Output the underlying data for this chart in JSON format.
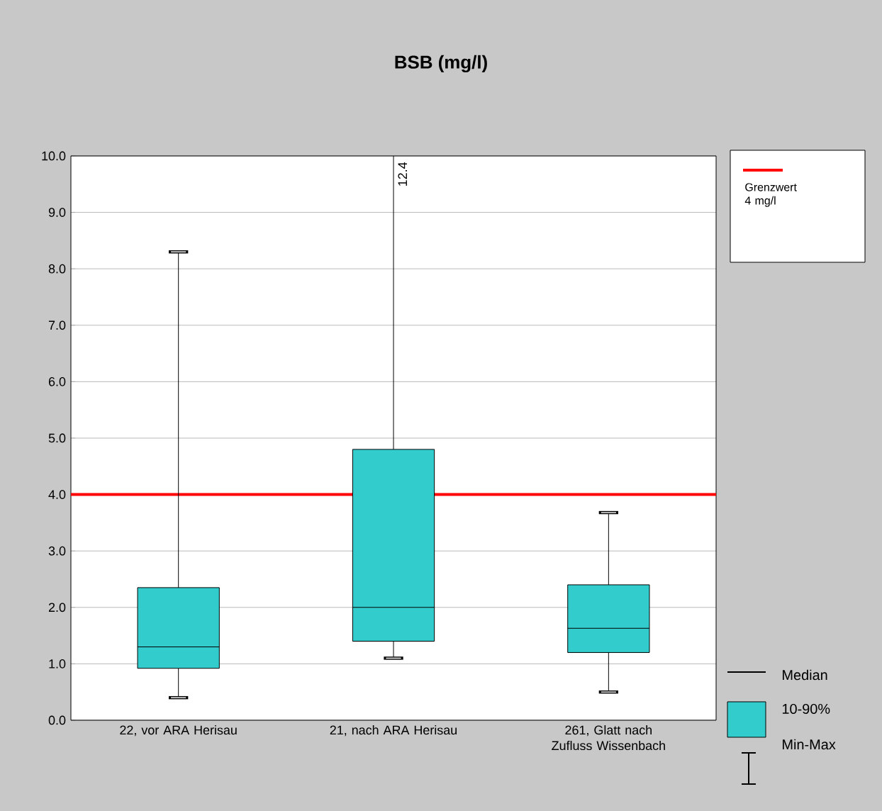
{
  "chart_data": {
    "type": "box",
    "title": "BSB (mg/l)",
    "categories": [
      "22, vor ARA Herisau",
      "21, nach ARA Herisau",
      "261, Glatt nach Zufluss Wissenbach"
    ],
    "boxes": [
      {
        "low": 0.4,
        "q1": 0.92,
        "median": 1.3,
        "q3": 2.35,
        "high": 8.3
      },
      {
        "low": 1.1,
        "q1": 1.4,
        "median": 2.0,
        "q3": 4.8,
        "high": 12.4
      },
      {
        "low": 0.5,
        "q1": 1.2,
        "median": 1.63,
        "q3": 2.4,
        "high": 3.68
      }
    ],
    "color": "#33cccc",
    "ylim": [
      0,
      10
    ],
    "yticks": [
      {
        "value": 0,
        "label": "0.0"
      },
      {
        "value": 1,
        "label": "1.0"
      },
      {
        "value": 2,
        "label": "2.0"
      },
      {
        "value": 3,
        "label": "3.0"
      },
      {
        "value": 4,
        "label": "4.0"
      },
      {
        "value": 5,
        "label": "5.0"
      },
      {
        "value": 6,
        "label": "6.0"
      },
      {
        "value": 7,
        "label": "7.0"
      },
      {
        "value": 8,
        "label": "8.0"
      },
      {
        "value": 9,
        "label": "9.0"
      },
      {
        "value": 10,
        "label": "10.0"
      }
    ],
    "grid": "y",
    "ref_lines": [
      {
        "axis": "y",
        "value": 4,
        "label": "Grenzwert 4 mg/l",
        "color": "#ff0000"
      }
    ],
    "annotations": [
      "12.4",
      "Median",
      "10-90%",
      "Min-Max"
    ],
    "legend": "right"
  }
}
